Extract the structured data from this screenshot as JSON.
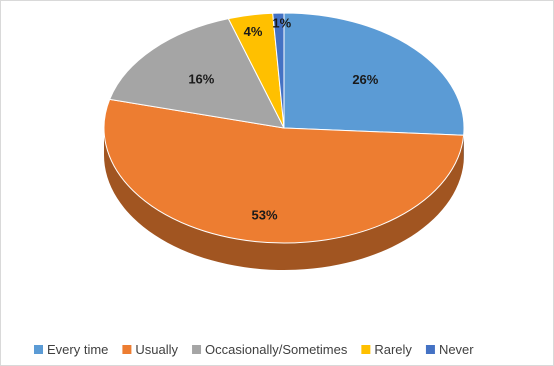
{
  "chart_data": {
    "type": "pie",
    "style": "3d",
    "title": "",
    "legend_position": "bottom",
    "slices": [
      {
        "label": "Every time",
        "value": 26,
        "value_label": "26%",
        "color": "#5B9BD5"
      },
      {
        "label": "Usually",
        "value": 53,
        "value_label": "53%",
        "color": "#ED7D31"
      },
      {
        "label": "Occasionally/Sometimes",
        "value": 16,
        "value_label": "16%",
        "color": "#A5A5A5"
      },
      {
        "label": "Rarely",
        "value": 4,
        "value_label": "4%",
        "color": "#FFC000"
      },
      {
        "label": "Never",
        "value": 1,
        "value_label": "1%",
        "color": "#4472C4"
      }
    ]
  }
}
